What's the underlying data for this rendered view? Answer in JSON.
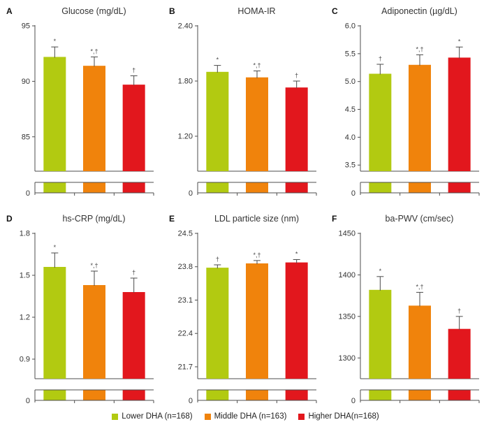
{
  "colors": {
    "background": "#ffffff",
    "bar_green": "#b2ca11",
    "bar_orange": "#f0830c",
    "bar_red": "#e2171d",
    "axis": "#4d4d4d",
    "text": "#333333",
    "marker": "#4a4a4a"
  },
  "bar_color_keys": [
    "bar_green",
    "bar_orange",
    "bar_red"
  ],
  "legend": {
    "items": [
      {
        "label": "Lower DHA (n=168)",
        "color_key": "bar_green"
      },
      {
        "label": "Middle DHA (n=163)",
        "color_key": "bar_orange"
      },
      {
        "label": "Higher DHA(n=168)",
        "color_key": "bar_red"
      }
    ]
  },
  "chart_data": [
    {
      "type": "bar",
      "letter": "A",
      "title": "Glucose (mg/dL)",
      "categories": [
        "Lower DHA",
        "Middle DHA",
        "Higher DHA"
      ],
      "values": [
        92.2,
        91.4,
        89.7
      ],
      "errors": [
        0.9,
        0.8,
        0.8
      ],
      "significance": [
        "*",
        "*,†",
        "†"
      ],
      "yticks": [
        85,
        90,
        95
      ],
      "ytick_labels": [
        "85",
        "90",
        "95"
      ],
      "ylim": [
        81.9,
        95
      ],
      "axis_break": true,
      "zero_label": "0"
    },
    {
      "type": "bar",
      "letter": "B",
      "title": "HOMA-IR",
      "categories": [
        "Lower DHA",
        "Middle DHA",
        "Higher DHA"
      ],
      "values": [
        1.9,
        1.84,
        1.73
      ],
      "errors": [
        0.07,
        0.07,
        0.07
      ],
      "significance": [
        "*",
        "*,†",
        "†"
      ],
      "yticks": [
        1.2,
        1.8,
        2.4
      ],
      "ytick_labels": [
        "1.20",
        "1.80",
        "2.40"
      ],
      "ylim": [
        0.82,
        2.4
      ],
      "axis_break": true,
      "zero_label": "0"
    },
    {
      "type": "bar",
      "letter": "C",
      "title": "Adiponectin (µg/dL)",
      "categories": [
        "Lower DHA",
        "Middle DHA",
        "Higher DHA"
      ],
      "values": [
        5.14,
        5.3,
        5.43
      ],
      "errors": [
        0.17,
        0.18,
        0.19
      ],
      "significance": [
        "†",
        "*,†",
        "*"
      ],
      "yticks": [
        3.5,
        4.0,
        4.5,
        5.0,
        5.5,
        6.0
      ],
      "ytick_labels": [
        "3.5",
        "4.0",
        "4.5",
        "5.0",
        "5.5",
        "6.0"
      ],
      "ylim": [
        3.39,
        6.0
      ],
      "axis_break": true,
      "zero_label": "0"
    },
    {
      "type": "bar",
      "letter": "D",
      "title": "hs-CRP (mg/dL)",
      "categories": [
        "Lower DHA",
        "Middle DHA",
        "Higher DHA"
      ],
      "values": [
        1.56,
        1.43,
        1.38
      ],
      "errors": [
        0.1,
        0.1,
        0.1
      ],
      "significance": [
        "*",
        "*,†",
        "†"
      ],
      "yticks": [
        0.9,
        1.2,
        1.5,
        1.8
      ],
      "ytick_labels": [
        "0.9",
        "1.2",
        "1.5",
        "1.8"
      ],
      "ylim": [
        0.76,
        1.8
      ],
      "axis_break": true,
      "zero_label": "0"
    },
    {
      "type": "bar",
      "letter": "E",
      "title": "LDL particle size (nm)",
      "categories": [
        "Lower DHA",
        "Middle DHA",
        "Higher DHA"
      ],
      "values": [
        23.78,
        23.87,
        23.89
      ],
      "errors": [
        0.06,
        0.06,
        0.06
      ],
      "significance": [
        "†",
        "*,†",
        "*"
      ],
      "yticks": [
        21.7,
        22.4,
        23.1,
        23.8,
        24.5
      ],
      "ytick_labels": [
        "21.7",
        "22.4",
        "23.1",
        "23.8",
        "24.5"
      ],
      "ylim": [
        21.45,
        24.5
      ],
      "axis_break": true,
      "zero_label": "0"
    },
    {
      "type": "bar",
      "letter": "F",
      "title": "ba-PWV (cm/sec)",
      "categories": [
        "Lower DHA",
        "Middle DHA",
        "Higher DHA"
      ],
      "values": [
        1382,
        1363,
        1335
      ],
      "errors": [
        16,
        16,
        15
      ],
      "significance": [
        "*",
        "*,†",
        "†"
      ],
      "yticks": [
        1300,
        1350,
        1400,
        1450
      ],
      "ytick_labels": [
        "1300",
        "1350",
        "1400",
        "1450"
      ],
      "ylim": [
        1275,
        1450
      ],
      "axis_break": true,
      "zero_label": "0"
    }
  ]
}
